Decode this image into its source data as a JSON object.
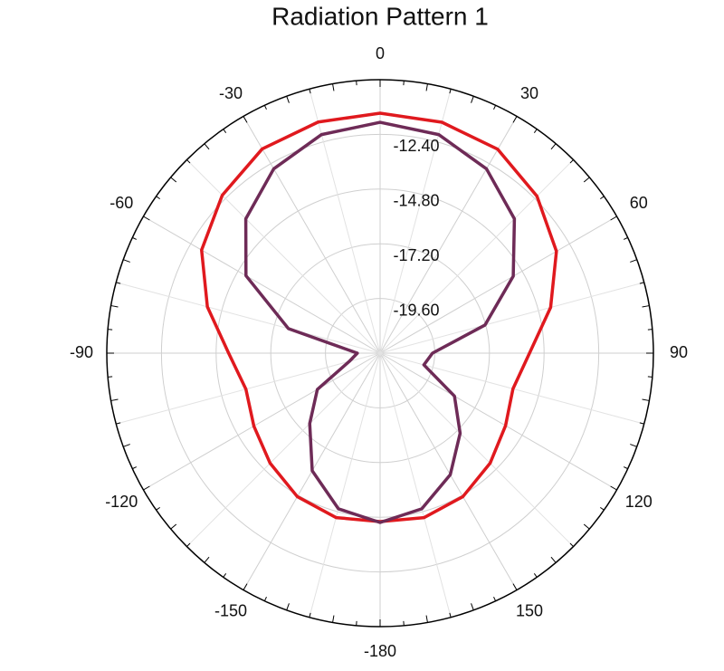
{
  "chart_data": {
    "type": "polar-line",
    "title": "Radiation Pattern 1",
    "theta": [
      -165,
      -150,
      -135,
      -120,
      -105,
      -90,
      -75,
      -60,
      -45,
      -30,
      -15,
      0,
      15,
      30,
      45,
      60,
      75,
      90,
      105,
      120,
      135,
      150,
      165,
      180
    ],
    "series": [
      {
        "color": "#e0191e",
        "values": [
          -14.53,
          -14.73,
          -15.17,
          -15.6,
          -15.9,
          -15.35,
          -14.15,
          -12.95,
          -12.2,
          -11.65,
          -11.5,
          -11.47,
          -11.51,
          -11.67,
          -12.26,
          -13.06,
          -14.25,
          -15.44,
          -15.96,
          -15.64,
          -15.17,
          -14.73,
          -14.53,
          -14.61
        ]
      },
      {
        "color": "#6e2b57",
        "values": [
          -14.93,
          -16.04,
          -17.63,
          -18.82,
          -20.6,
          -21.0,
          -17.83,
          -15.2,
          -13.66,
          -12.66,
          -12.07,
          -11.87,
          -12.07,
          -12.66,
          -13.66,
          -15.25,
          -17.23,
          -19.7,
          -20.01,
          -18.23,
          -17.03,
          -15.84,
          -14.93,
          -14.57
        ]
      }
    ],
    "rlim": [
      -22,
      -10
    ],
    "rticks": [
      {
        "value": -19.6,
        "label": "-19.60"
      },
      {
        "value": -17.2,
        "label": "-17.20"
      },
      {
        "value": -14.8,
        "label": "-14.80"
      },
      {
        "value": -12.4,
        "label": "-12.40"
      }
    ],
    "thetaticks": [
      0,
      30,
      60,
      90,
      120,
      150,
      -180,
      -150,
      -120,
      -90,
      -60,
      -30
    ],
    "grid": true
  }
}
